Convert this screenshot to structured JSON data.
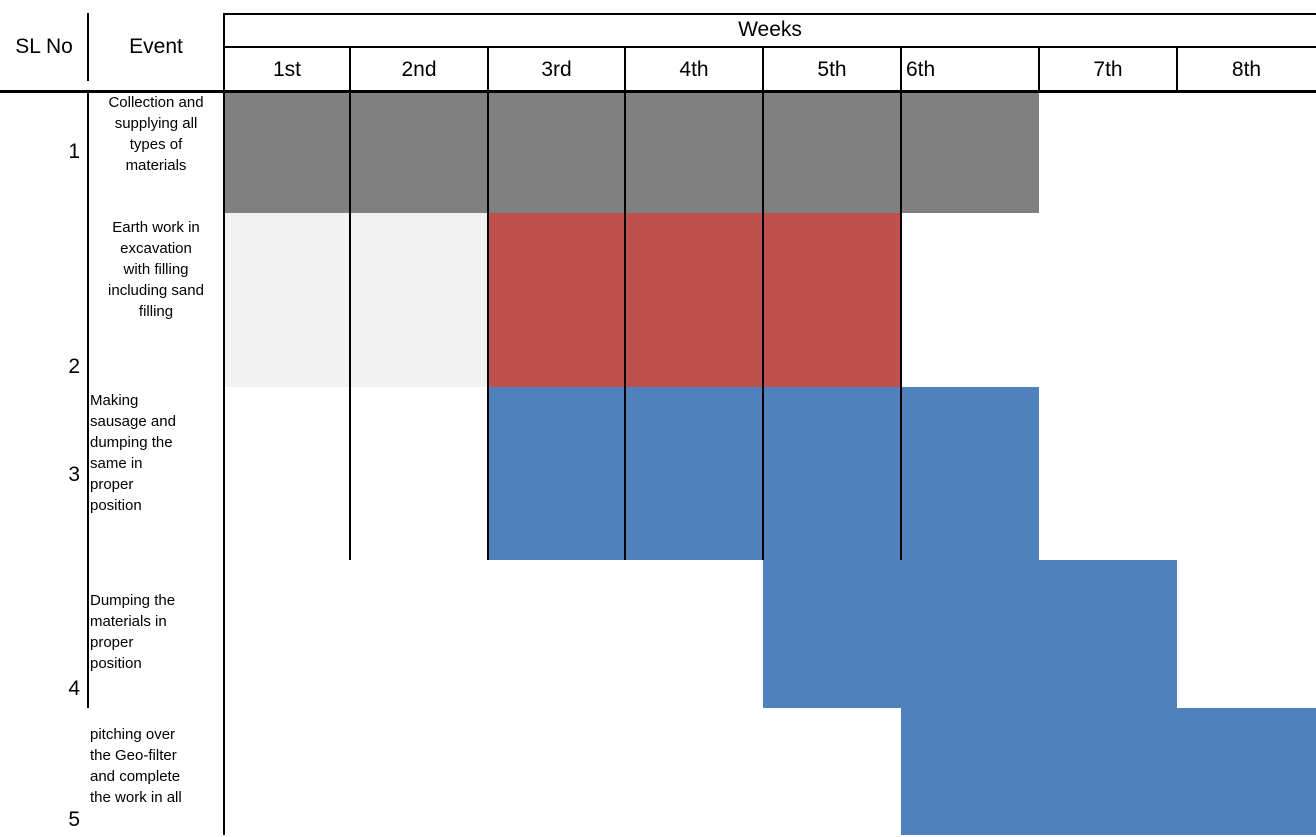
{
  "header": {
    "sl_no": "SL No",
    "event": "Event",
    "weeks": "Weeks",
    "week_labels": [
      "1st",
      "2nd",
      "3rd",
      "4th",
      "5th",
      "6th",
      "7th",
      "8th"
    ]
  },
  "rows": [
    {
      "sl": "1",
      "event": "Collection and\nsupplying all\ntypes of\nmaterials",
      "weeks": [
        1,
        6
      ],
      "color": "#808080"
    },
    {
      "sl": "2",
      "event": "Earth work in\nexcavation\nwith filling\nincluding sand\nfilling",
      "weeks": [
        3,
        5
      ],
      "color": "#c0504d",
      "pre_weeks": [
        1,
        2
      ],
      "pre_color": "#f2f2f2"
    },
    {
      "sl": "3",
      "event": "Making\nsausage and\ndumping the\nsame in\nproper\nposition",
      "weeks": [
        3,
        6
      ],
      "color": "#4f81bd"
    },
    {
      "sl": "4",
      "event": "Dumping the\nmaterials in\nproper\nposition",
      "weeks": [
        5,
        7
      ],
      "color": "#4f81bd"
    },
    {
      "sl": "5",
      "event": "pitching over\nthe Geo-filter\nand complete\nthe work in all",
      "weeks": [
        6,
        8
      ],
      "color": "#4f81bd"
    }
  ]
}
